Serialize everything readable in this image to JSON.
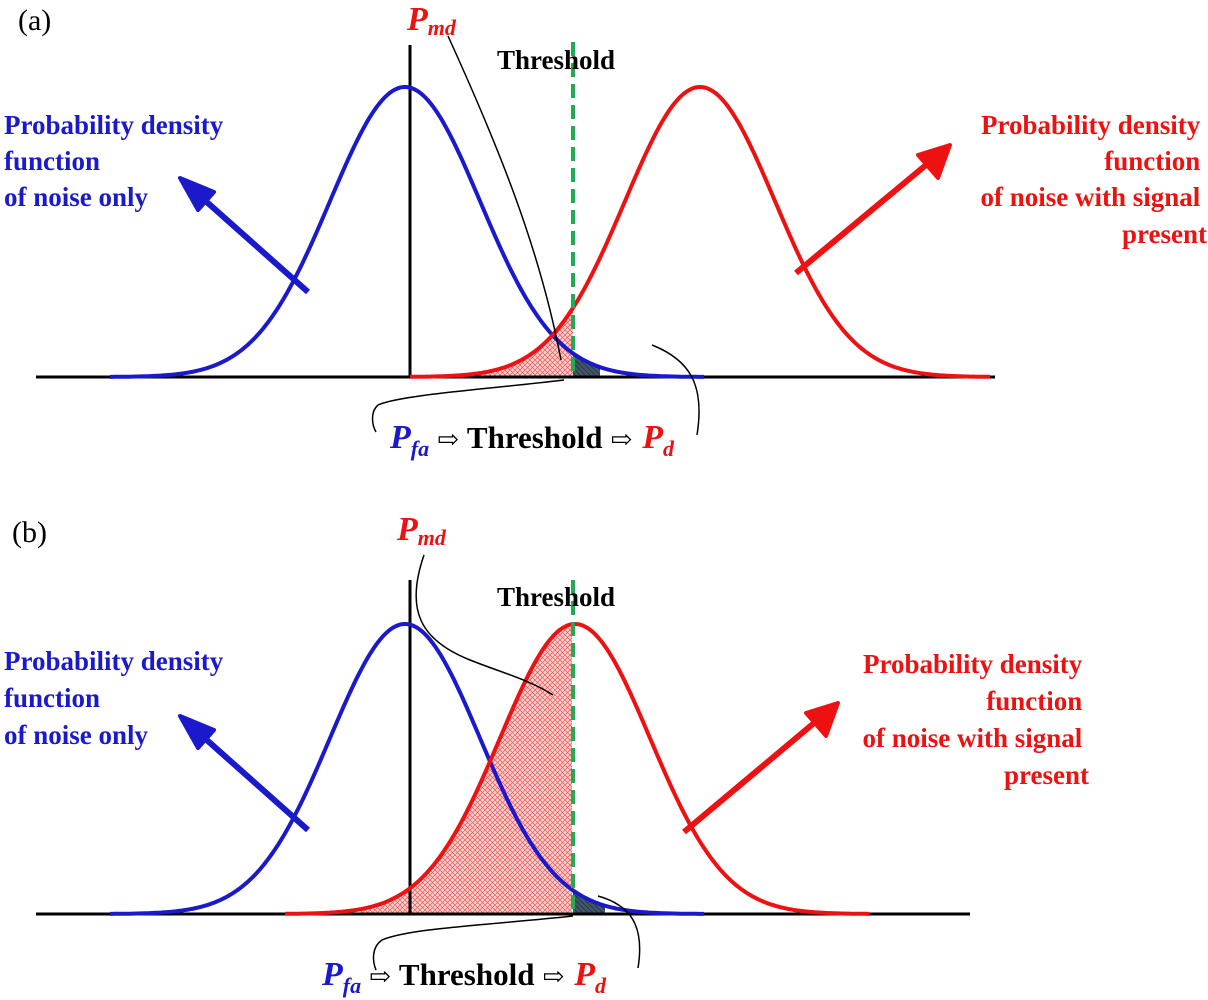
{
  "panels": [
    {
      "tag": "(a)",
      "pmd_main": "P",
      "pmd_sub": "md",
      "threshold_label": "Threshold",
      "noise_label": [
        "Probability density",
        "function",
        "of noise only"
      ],
      "signal_label": [
        "Probability density",
        "function",
        "of noise with signal",
        "present"
      ],
      "pfa_main": "P",
      "pfa_sub": "fa",
      "arrow1": "⇨",
      "flow_threshold": "Threshold",
      "arrow2": "⇨",
      "pd_main": "P",
      "pd_sub": "d"
    },
    {
      "tag": "(b)",
      "pmd_main": "P",
      "pmd_sub": "md",
      "threshold_label": "Threshold",
      "noise_label": [
        "Probability density",
        "function",
        "of noise only"
      ],
      "signal_label": [
        "Probability density",
        "function",
        "of noise with signal",
        "present"
      ],
      "pfa_main": "P",
      "pfa_sub": "fa",
      "arrow1": "⇨",
      "flow_threshold": "Threshold",
      "arrow2": "⇨",
      "pd_main": "P",
      "pd_sub": "d"
    }
  ],
  "colors": {
    "noise_curve": "#1a1acc",
    "signal_curve": "#ee1111",
    "threshold_line": "#22aa55",
    "axis": "#000000"
  }
}
